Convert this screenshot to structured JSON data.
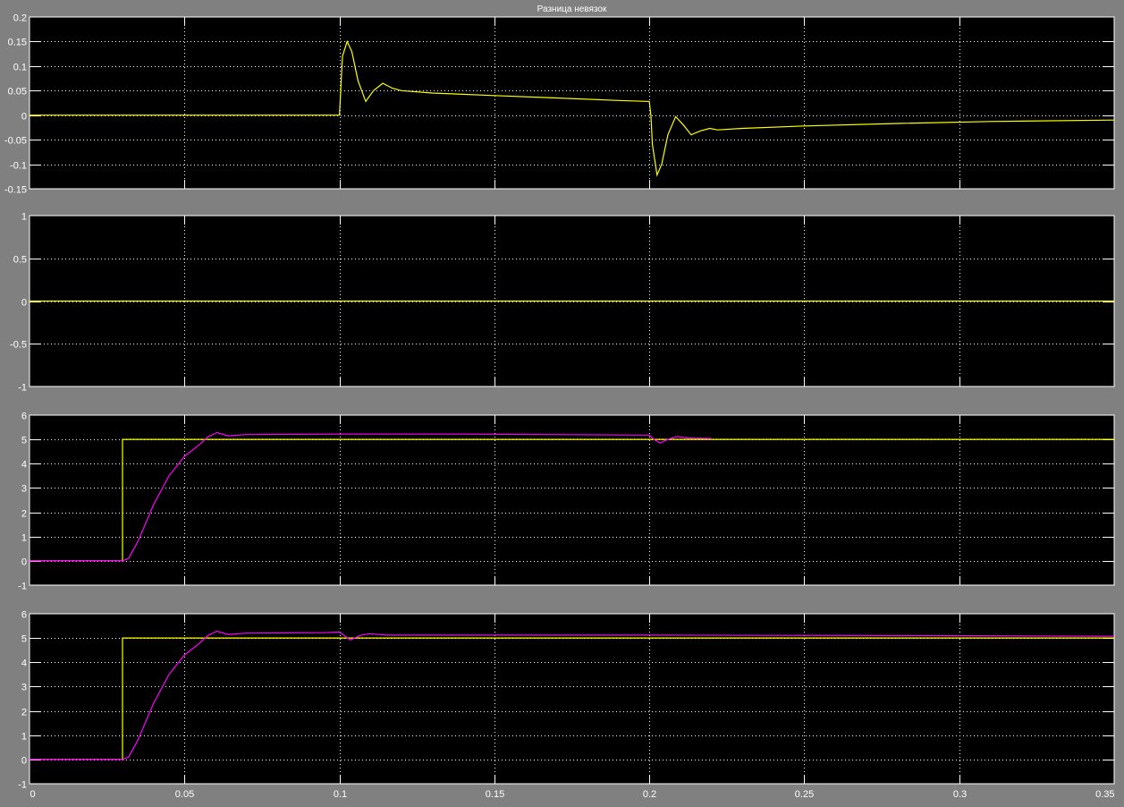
{
  "window": {
    "background": "#808080"
  },
  "chart_data": [
    {
      "type": "line",
      "title": "Разница невязок",
      "xlim": [
        0,
        0.35
      ],
      "ylim": [
        -0.15,
        0.2
      ],
      "xticks": [
        "0",
        "0.05",
        "0.1",
        "0.15",
        "0.2",
        "0.25",
        "0.3",
        "0.35"
      ],
      "yticks": [
        "-0.15",
        "-0.1",
        "-0.05",
        "0",
        "0.05",
        "0.1",
        "0.15",
        "0.2"
      ],
      "grid": true,
      "show_xtick_labels": false,
      "series": [
        {
          "color": "#ffff00",
          "x": [
            0,
            0.1,
            0.1005,
            0.101,
            0.1025,
            0.104,
            0.106,
            0.1085,
            0.111,
            0.114,
            0.117,
            0.12,
            0.13,
            0.15,
            0.17,
            0.19,
            0.2,
            0.2005,
            0.201,
            0.2025,
            0.204,
            0.206,
            0.2085,
            0.211,
            0.2135,
            0.2165,
            0.2195,
            0.222,
            0.23,
            0.25,
            0.28,
            0.31,
            0.35
          ],
          "y": [
            0,
            0,
            0.06,
            0.12,
            0.15,
            0.13,
            0.07,
            0.028,
            0.05,
            0.065,
            0.055,
            0.05,
            0.045,
            0.04,
            0.035,
            0.03,
            0.028,
            0.0,
            -0.06,
            -0.122,
            -0.1,
            -0.04,
            -0.003,
            -0.02,
            -0.04,
            -0.032,
            -0.027,
            -0.03,
            -0.027,
            -0.022,
            -0.017,
            -0.013,
            -0.01
          ]
        }
      ]
    },
    {
      "type": "line",
      "xlim": [
        0,
        0.35
      ],
      "ylim": [
        -1,
        1
      ],
      "xticks": [
        "0",
        "0.05",
        "0.1",
        "0.15",
        "0.2",
        "0.25",
        "0.3",
        "0.35"
      ],
      "yticks": [
        "-1",
        "-0.5",
        "0",
        "0.5",
        "1"
      ],
      "grid": true,
      "show_xtick_labels": false,
      "series": [
        {
          "color": "#ffff00",
          "x": [
            0,
            0.35
          ],
          "y": [
            0,
            0
          ]
        }
      ]
    },
    {
      "type": "line",
      "xlim": [
        0,
        0.35
      ],
      "ylim": [
        -1,
        6
      ],
      "xticks": [
        "0",
        "0.05",
        "0.1",
        "0.15",
        "0.2",
        "0.25",
        "0.3",
        "0.35"
      ],
      "yticks": [
        "-1",
        "0",
        "1",
        "2",
        "3",
        "4",
        "5",
        "6"
      ],
      "grid": true,
      "show_xtick_labels": false,
      "series": [
        {
          "color": "#ffff00",
          "x": [
            0,
            0.03,
            0.03,
            0.35
          ],
          "y": [
            0,
            0,
            5,
            5
          ]
        },
        {
          "color": "#ff00ff",
          "x": [
            0,
            0.03,
            0.032,
            0.035,
            0.04,
            0.045,
            0.05,
            0.055,
            0.0575,
            0.0605,
            0.064,
            0.07,
            0.1,
            0.14,
            0.2,
            0.2015,
            0.2035,
            0.206,
            0.209,
            0.212,
            0.215,
            0.22
          ],
          "y": [
            0,
            0,
            0.1,
            0.8,
            2.3,
            3.5,
            4.3,
            4.8,
            5.1,
            5.28,
            5.15,
            5.2,
            5.22,
            5.22,
            5.18,
            5.0,
            4.85,
            5.0,
            5.12,
            5.06,
            5.05,
            5.04
          ]
        }
      ]
    },
    {
      "type": "line",
      "xlim": [
        0,
        0.35
      ],
      "ylim": [
        -1,
        6
      ],
      "xticks": [
        "0",
        "0.05",
        "0.1",
        "0.15",
        "0.2",
        "0.25",
        "0.3",
        "0.35"
      ],
      "yticks": [
        "-1",
        "0",
        "1",
        "2",
        "3",
        "4",
        "5",
        "6"
      ],
      "grid": true,
      "show_xtick_labels": true,
      "series": [
        {
          "color": "#ffff00",
          "x": [
            0,
            0.03,
            0.03,
            0.35
          ],
          "y": [
            0,
            0,
            5,
            5
          ]
        },
        {
          "color": "#ff00ff",
          "x": [
            0,
            0.03,
            0.032,
            0.035,
            0.04,
            0.045,
            0.05,
            0.055,
            0.0575,
            0.0605,
            0.064,
            0.07,
            0.095,
            0.1,
            0.1035,
            0.107,
            0.11,
            0.115,
            0.2,
            0.29,
            0.35
          ],
          "y": [
            0,
            0,
            0.1,
            0.8,
            2.3,
            3.5,
            4.3,
            4.8,
            5.1,
            5.28,
            5.15,
            5.2,
            5.22,
            5.25,
            4.92,
            5.12,
            5.18,
            5.12,
            5.12,
            5.1,
            5.07
          ]
        }
      ]
    }
  ]
}
